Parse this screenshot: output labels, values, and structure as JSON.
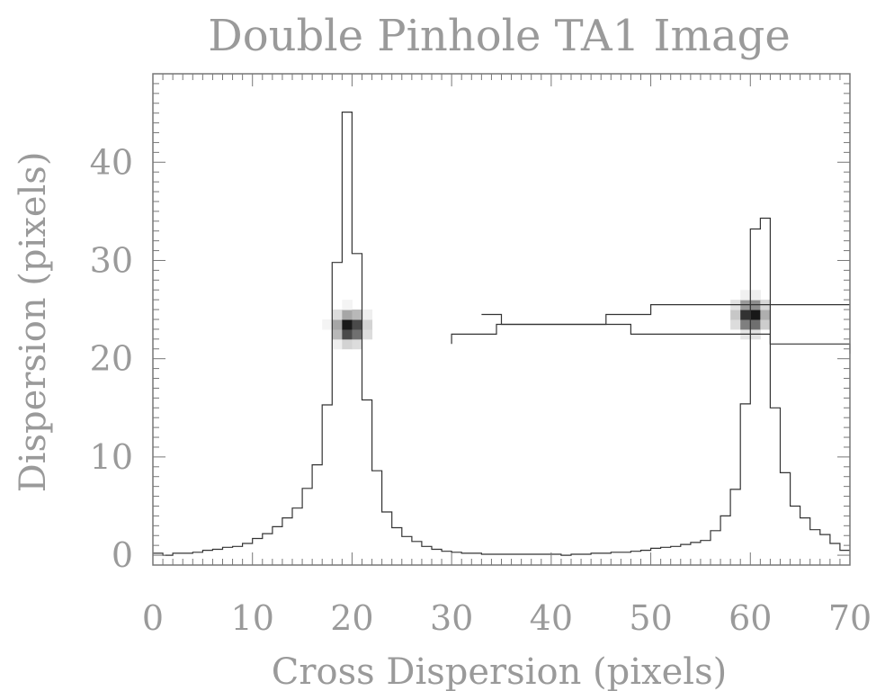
{
  "chart_data": {
    "type": "line",
    "title": "Double Pinhole TA1 Image",
    "xlabel": "Cross Dispersion (pixels)",
    "ylabel": "Dispersion (pixels)",
    "xlim": [
      0,
      70
    ],
    "ylim": [
      -1,
      49
    ],
    "x_ticks": [
      0,
      10,
      20,
      30,
      40,
      50,
      60,
      70
    ],
    "y_ticks": [
      0,
      10,
      20,
      30,
      40
    ],
    "grid": false,
    "series": [
      {
        "style": "histogram-step",
        "comment_free": true,
        "x": [
          0,
          1,
          2,
          3,
          4,
          5,
          6,
          7,
          8,
          9,
          10,
          11,
          12,
          13,
          14,
          15,
          16,
          17,
          18,
          19,
          20,
          21,
          22,
          23,
          24,
          25,
          26,
          27,
          28,
          29,
          30,
          31,
          32,
          33,
          34,
          35,
          36,
          37,
          38,
          39,
          40,
          41,
          42,
          43,
          44,
          45,
          46,
          47,
          48,
          49,
          50,
          51,
          52,
          53,
          54,
          55,
          56,
          57,
          58,
          59,
          60,
          61,
          62,
          63,
          64,
          65,
          66,
          67,
          68,
          69
        ],
        "values": [
          0.2,
          0,
          0.2,
          0.2,
          0.3,
          0.5,
          0.6,
          0.8,
          0.9,
          1.2,
          1.7,
          2.2,
          2.9,
          3.8,
          4.8,
          6.8,
          9.2,
          15.3,
          29.8,
          45.1,
          30.7,
          15.8,
          8.6,
          4.4,
          2.8,
          1.9,
          1.4,
          0.9,
          0.6,
          0.4,
          0.3,
          0.2,
          0.2,
          0.1,
          0.1,
          0.1,
          0.1,
          0.1,
          0.1,
          0.1,
          0.1,
          0,
          0.1,
          0.1,
          0.2,
          0.2,
          0.3,
          0.3,
          0.4,
          0.5,
          0.7,
          0.8,
          0.9,
          1.1,
          1.3,
          1.5,
          2.5,
          4,
          6.7,
          15.4,
          33.2,
          34.3,
          15,
          8.4,
          5,
          3.8,
          2.6,
          2.1,
          1.2,
          0.5
        ]
      },
      {
        "style": "histogram-step-vertical",
        "y_bins": [
          [
            21.5,
            30
          ],
          [
            22.5,
            34.5
          ],
          [
            23.5,
            45.5
          ],
          [
            24.5,
            50
          ],
          [
            25.5,
            70
          ]
        ]
      },
      {
        "style": "histogram-step-vertical",
        "y_bins": [
          [
            20.5,
            70
          ],
          [
            21.5,
            62
          ],
          [
            22.5,
            48
          ],
          [
            23.5,
            35
          ],
          [
            24.5,
            33
          ]
        ]
      }
    ],
    "spots": [
      {
        "x": 19.8,
        "y": 23.2
      },
      {
        "x": 60.1,
        "y": 24.4
      }
    ]
  }
}
